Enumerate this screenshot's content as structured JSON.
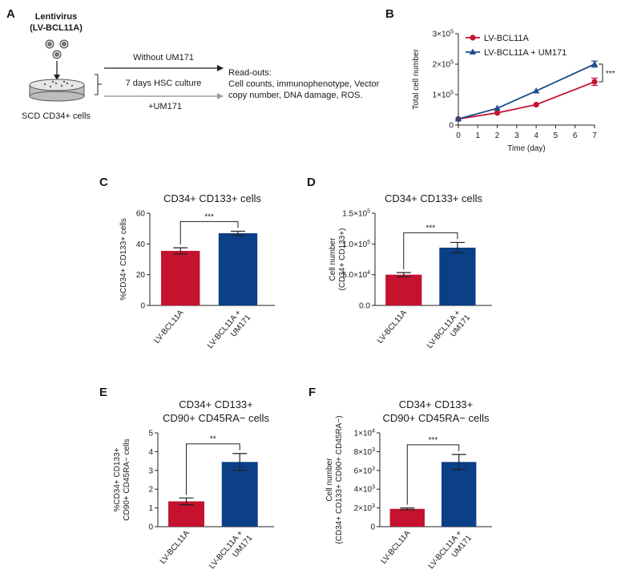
{
  "panels": {
    "A": {
      "label": "A",
      "vector_title": "Lentivirus",
      "vector_name": "(LV-BCL11A)",
      "cells_label": "SCD CD34+ cells",
      "arrow_top": "Without UM171",
      "arrow_middle": "7 days HSC culture",
      "arrow_bottom": "+UM171",
      "readout_lines": [
        "Read-outs:",
        "Cell counts, immunophenotype, Vector",
        "copy number, DNA damage, ROS."
      ]
    },
    "B": {
      "label": "B"
    },
    "C": {
      "label": "C"
    },
    "D": {
      "label": "D"
    },
    "E": {
      "label": "E"
    },
    "F": {
      "label": "F"
    }
  },
  "colors": {
    "red": "#c4122f",
    "blue": "#0b3f86",
    "dark_blue": "#1f4e8c"
  },
  "chart_data": [
    {
      "panel": "B",
      "type": "line",
      "title": "",
      "xlabel": "Time (day)",
      "ylabel": "Total cell number",
      "x": [
        0,
        2,
        4,
        7
      ],
      "xlim": [
        0,
        7
      ],
      "xticks": [
        "0",
        "1",
        "2",
        "3",
        "4",
        "5",
        "6",
        "7"
      ],
      "ylim": [
        0,
        300000
      ],
      "yticks": [
        {
          "value": 0,
          "base": "0",
          "exp": ""
        },
        {
          "value": 100000,
          "base": "1×10",
          "exp": "5"
        },
        {
          "value": 200000,
          "base": "2×10",
          "exp": "5"
        },
        {
          "value": 300000,
          "base": "3×10",
          "exp": "5"
        }
      ],
      "series": [
        {
          "name": "LV-BCL11A",
          "marker": "circle",
          "values": [
            20000,
            40000,
            67000,
            142000
          ],
          "errors": [
            0,
            0,
            0,
            12000
          ]
        },
        {
          "name": "LV-BCL11A + UM171",
          "marker": "triangle",
          "values": [
            20000,
            55000,
            112000,
            200000
          ],
          "errors": [
            0,
            0,
            0,
            10000
          ]
        }
      ],
      "significance": "***",
      "legend": "top-left"
    },
    {
      "panel": "C",
      "type": "bar",
      "title": "CD34+ CD133+ cells",
      "ylabel": "%CD34+ CD133+ cells",
      "categories": [
        "LV-BCL11A",
        "LV-BCL11A + UM171"
      ],
      "category_lines": [
        [
          "LV-BCL11A"
        ],
        [
          "LV-BCL11A +",
          "UM171"
        ]
      ],
      "values": [
        35.5,
        47
      ],
      "errors": [
        2,
        1.3
      ],
      "ylim": [
        0,
        60
      ],
      "yticks": [
        {
          "value": 0,
          "base": "0",
          "exp": ""
        },
        {
          "value": 20,
          "base": "20",
          "exp": ""
        },
        {
          "value": 40,
          "base": "40",
          "exp": ""
        },
        {
          "value": 60,
          "base": "60",
          "exp": ""
        }
      ],
      "significance": "***"
    },
    {
      "panel": "D",
      "type": "bar",
      "title": "CD34+ CD133+ cells",
      "ylabel": "Cell number",
      "ylabel2": "(CD34+ CD133+)",
      "categories": [
        "LV-BCL11A",
        "LV-BCL11A + UM171"
      ],
      "category_lines": [
        [
          "LV-BCL11A"
        ],
        [
          "LV-BCL11A +",
          "UM171"
        ]
      ],
      "values": [
        50000,
        94000
      ],
      "errors": [
        3500,
        8500
      ],
      "ylim": [
        0,
        150000
      ],
      "yticks": [
        {
          "value": 0,
          "base": "0.0",
          "exp": ""
        },
        {
          "value": 50000,
          "base": "5.0×10",
          "exp": "4"
        },
        {
          "value": 100000,
          "base": "1.0×10",
          "exp": "5"
        },
        {
          "value": 150000,
          "base": "1.5×10",
          "exp": "5"
        }
      ],
      "significance": "***"
    },
    {
      "panel": "E",
      "type": "bar",
      "title": "CD34+ CD133+",
      "title2": "CD90+ CD45RA− cells",
      "ylabel": "%CD34+ CD133+",
      "ylabel2": "CD90+ CD45RA− cells",
      "categories": [
        "LV-BCL11A",
        "LV-BCL11A + UM171"
      ],
      "category_lines": [
        [
          "LV-BCL11A"
        ],
        [
          "LV-BCL11A +",
          "UM171"
        ]
      ],
      "values": [
        1.35,
        3.45
      ],
      "errors": [
        0.18,
        0.45
      ],
      "ylim": [
        0,
        5
      ],
      "yticks": [
        {
          "value": 0,
          "base": "0",
          "exp": ""
        },
        {
          "value": 1,
          "base": "1",
          "exp": ""
        },
        {
          "value": 2,
          "base": "2",
          "exp": ""
        },
        {
          "value": 3,
          "base": "3",
          "exp": ""
        },
        {
          "value": 4,
          "base": "4",
          "exp": ""
        },
        {
          "value": 5,
          "base": "5",
          "exp": ""
        }
      ],
      "significance": "**"
    },
    {
      "panel": "F",
      "type": "bar",
      "title": "CD34+ CD133+",
      "title2": "CD90+ CD45RA− cells",
      "ylabel": "Cell number",
      "ylabel2": "(CD34+ CD133+ CD90+ CD45RA−)",
      "categories": [
        "LV-BCL11A",
        "LV-BCL11A + UM171"
      ],
      "category_lines": [
        [
          "LV-BCL11A"
        ],
        [
          "LV-BCL11A +",
          "UM171"
        ]
      ],
      "values": [
        1900,
        6900
      ],
      "errors": [
        100,
        800
      ],
      "ylim": [
        0,
        10000
      ],
      "yticks": [
        {
          "value": 0,
          "base": "0",
          "exp": ""
        },
        {
          "value": 2000,
          "base": "2×10",
          "exp": "3"
        },
        {
          "value": 4000,
          "base": "4×10",
          "exp": "3"
        },
        {
          "value": 6000,
          "base": "6×10",
          "exp": "3"
        },
        {
          "value": 8000,
          "base": "8×10",
          "exp": "3"
        },
        {
          "value": 10000,
          "base": "1×10",
          "exp": "4"
        }
      ],
      "significance": "***"
    }
  ]
}
